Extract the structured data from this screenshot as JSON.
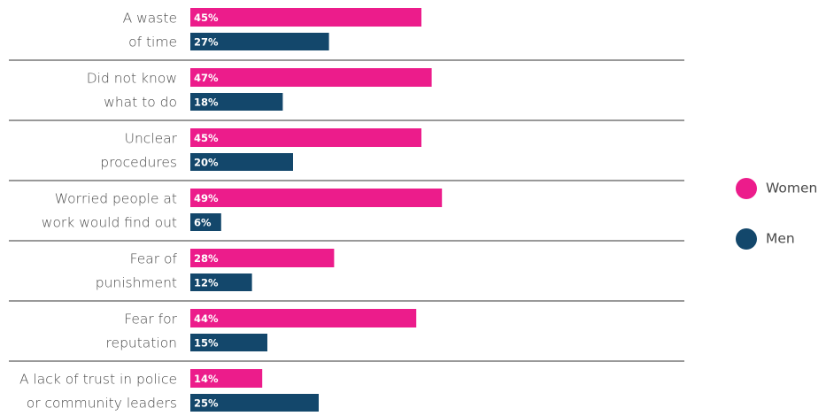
{
  "chart_data": {
    "type": "hbar",
    "categories": [
      [
        "A waste",
        "of time"
      ],
      [
        "Did not know",
        "what to do"
      ],
      [
        "Unclear",
        "procedures"
      ],
      [
        "Worried people at",
        "work would find out"
      ],
      [
        "Fear of",
        "punishment"
      ],
      [
        "Fear for",
        "reputation"
      ],
      [
        "A lack of trust in police",
        "or community leaders"
      ]
    ],
    "series": [
      {
        "name": "Women",
        "color": "#ec1c8b",
        "values": [
          45,
          47,
          45,
          49,
          28,
          44,
          14
        ],
        "value_labels": [
          "45%",
          "47%",
          "45%",
          "49%",
          "28%",
          "44%",
          "14%"
        ]
      },
      {
        "name": "Men",
        "color": "#13476b",
        "values": [
          27,
          18,
          20,
          6,
          12,
          15,
          25
        ],
        "value_labels": [
          "27%",
          "18%",
          "20%",
          "6%",
          "12%",
          "15%",
          "25%"
        ]
      }
    ],
    "legend": "right"
  }
}
